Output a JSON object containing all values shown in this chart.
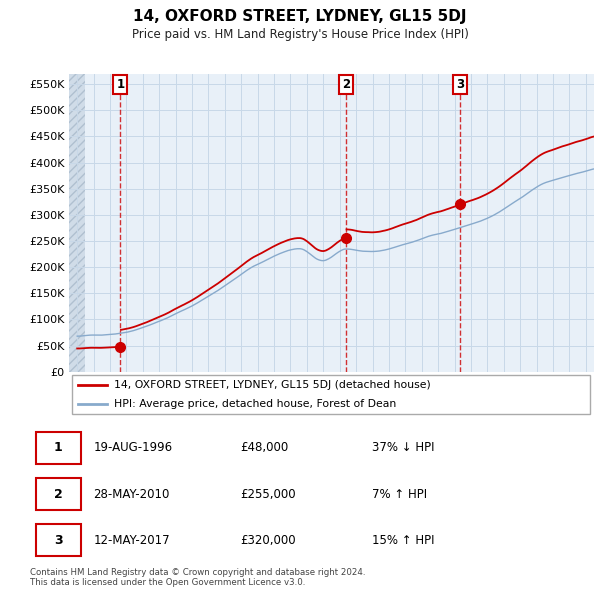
{
  "title": "14, OXFORD STREET, LYDNEY, GL15 5DJ",
  "subtitle": "Price paid vs. HM Land Registry's House Price Index (HPI)",
  "ylim": [
    0,
    570000
  ],
  "yticks": [
    0,
    50000,
    100000,
    150000,
    200000,
    250000,
    300000,
    350000,
    400000,
    450000,
    500000,
    550000
  ],
  "xlim_start": 1993.5,
  "xlim_end": 2025.5,
  "sale_dates": [
    1996.63,
    2010.41,
    2017.36
  ],
  "sale_prices": [
    48000,
    255000,
    320000
  ],
  "sale_labels": [
    "1",
    "2",
    "3"
  ],
  "vline_color": "#cc0000",
  "sale_color": "#cc0000",
  "hpi_color": "#88aacc",
  "price_line_color": "#cc0000",
  "legend_entries": [
    "14, OXFORD STREET, LYDNEY, GL15 5DJ (detached house)",
    "HPI: Average price, detached house, Forest of Dean"
  ],
  "table_data": [
    [
      "1",
      "19-AUG-1996",
      "£48,000",
      "37% ↓ HPI"
    ],
    [
      "2",
      "28-MAY-2010",
      "£255,000",
      "7% ↑ HPI"
    ],
    [
      "3",
      "12-MAY-2017",
      "£320,000",
      "15% ↑ HPI"
    ]
  ],
  "footnote": "Contains HM Land Registry data © Crown copyright and database right 2024.\nThis data is licensed under the Open Government Licence v3.0.",
  "bg_color": "#ffffff",
  "grid_color": "#c8d8e8",
  "hatch_area_end": 1994.5
}
